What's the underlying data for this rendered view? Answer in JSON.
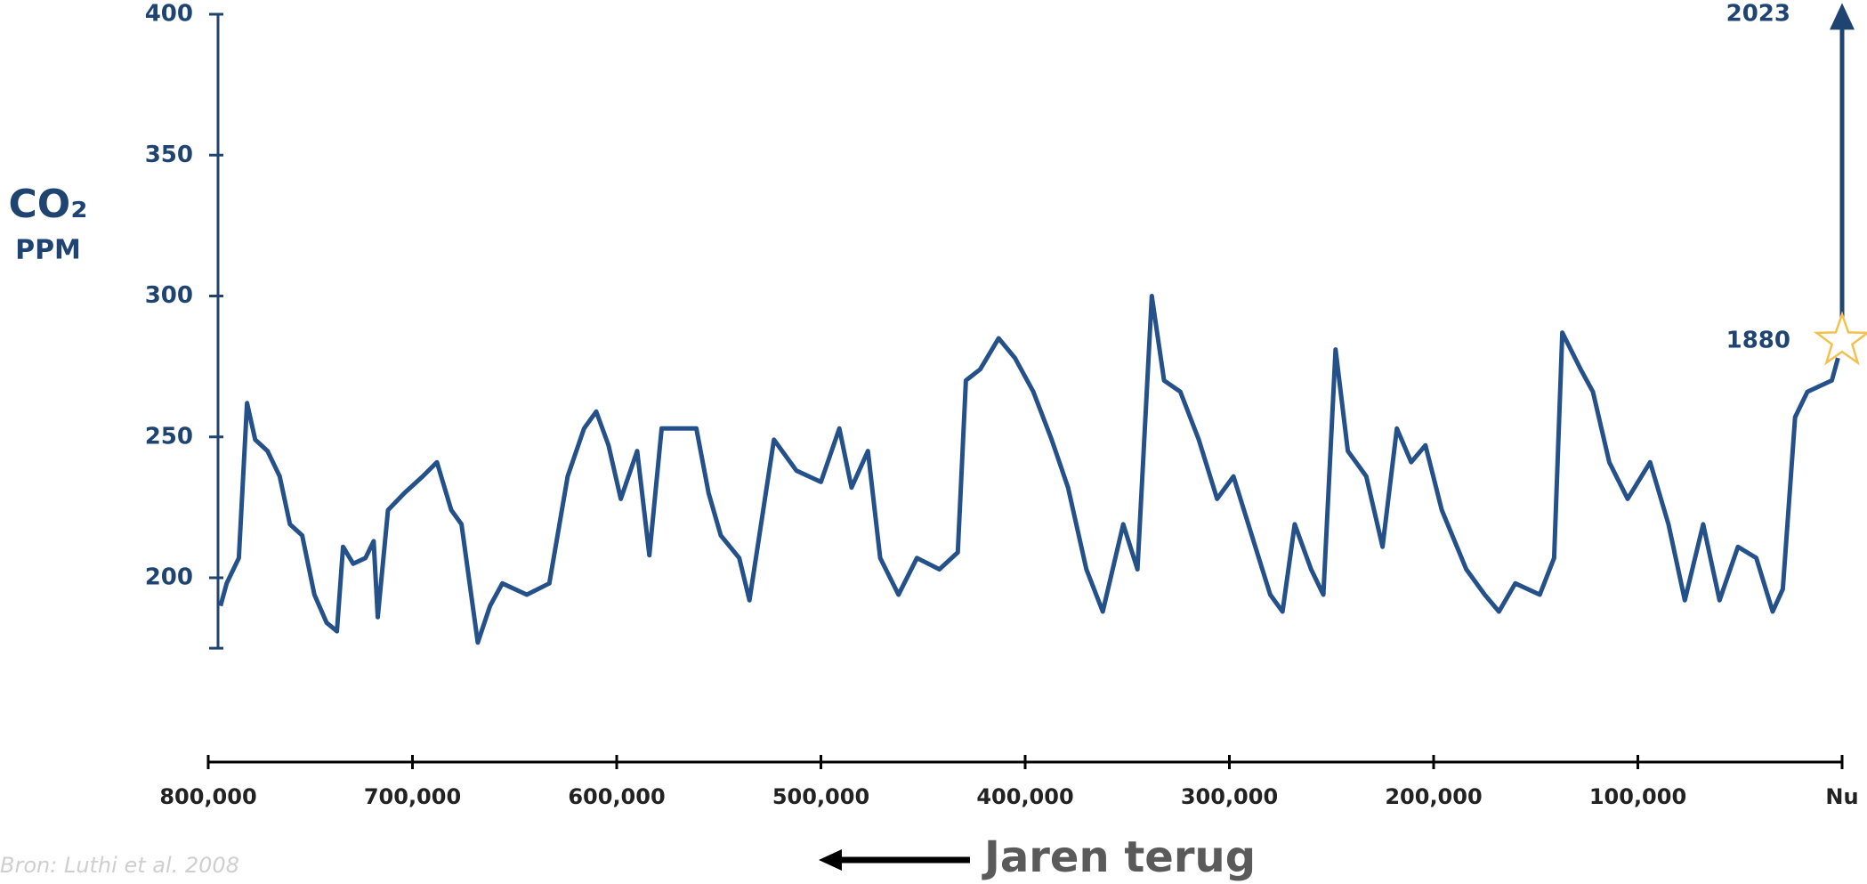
{
  "chart_data": {
    "type": "line",
    "y_label": "CO₂",
    "y_label_unit": "PPM",
    "x_label": "Jaren terug",
    "source": "Bron: Luthi et al. 2008",
    "color": "#24518a",
    "x": [
      794000,
      791000,
      785000,
      781000,
      777000,
      771000,
      765000,
      760000,
      754000,
      748000,
      742000,
      737000,
      734000,
      729000,
      723000,
      719000,
      717000,
      712000,
      704000,
      695000,
      688000,
      681000,
      676000,
      668000,
      662000,
      656000,
      644000,
      633000,
      624000,
      616000,
      610000,
      604000,
      598000,
      590000,
      584000,
      578000,
      570000,
      561000,
      555000,
      549000,
      540000,
      535000,
      523000,
      512000,
      500000,
      491000,
      485000,
      477000,
      471000,
      462000,
      453000,
      442000,
      433000,
      429000,
      422000,
      413000,
      405000,
      396000,
      387000,
      379000,
      370000,
      362000,
      352000,
      345000,
      338000,
      332000,
      324000,
      315000,
      306000,
      298000,
      289000,
      280000,
      274000,
      268000,
      260000,
      254000,
      248000,
      242000,
      233000,
      225000,
      218000,
      211000,
      204000,
      196000,
      184000,
      175000,
      168000,
      160000,
      148000,
      141000,
      137000,
      128000,
      122000,
      114000,
      105000,
      94000,
      85000,
      77000,
      68000,
      60000,
      51000,
      42000,
      34000,
      29000,
      23000,
      17000,
      5000,
      2000
    ],
    "values": [
      190,
      198,
      207,
      262,
      249,
      245,
      236,
      219,
      215,
      194,
      184,
      181,
      211,
      205,
      207,
      213,
      186,
      224,
      230,
      236,
      241,
      224,
      219,
      177,
      190,
      198,
      194,
      198,
      236,
      253,
      259,
      247,
      228,
      245,
      208,
      253,
      253,
      253,
      230,
      215,
      207,
      192,
      249,
      238,
      234,
      253,
      232,
      245,
      207,
      194,
      207,
      203,
      209,
      270,
      274,
      285,
      278,
      266,
      249,
      232,
      203,
      188,
      219,
      203,
      300,
      270,
      266,
      249,
      228,
      236,
      215,
      194,
      188,
      219,
      203,
      194,
      281,
      245,
      236,
      211,
      253,
      241,
      247,
      224,
      203,
      194,
      188,
      198,
      194,
      207,
      287,
      274,
      266,
      241,
      228,
      241,
      219,
      192,
      219,
      192,
      211,
      207,
      188,
      196,
      257,
      266,
      270,
      278
    ],
    "annotations": [
      {
        "label": "1880",
        "x": 0,
        "y": 284
      },
      {
        "label": "2023",
        "x": 0,
        "y": 404
      }
    ],
    "xlim": [
      800000,
      0
    ],
    "xticks": [
      {
        "value": 800000,
        "label": "800,000"
      },
      {
        "value": 700000,
        "label": "700,000"
      },
      {
        "value": 600000,
        "label": "600,000"
      },
      {
        "value": 500000,
        "label": "500,000"
      },
      {
        "value": 400000,
        "label": "400,000"
      },
      {
        "value": 300000,
        "label": "300,000"
      },
      {
        "value": 200000,
        "label": "200,000"
      },
      {
        "value": 100000,
        "label": "100,000"
      },
      {
        "value": 0,
        "label": "Nu"
      }
    ],
    "ylim": [
      175,
      400
    ],
    "yticks": [
      200,
      250,
      300,
      350,
      400
    ]
  }
}
